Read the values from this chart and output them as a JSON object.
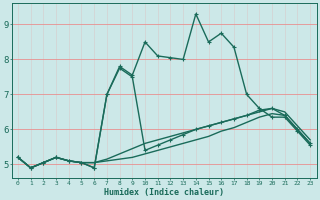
{
  "title": "",
  "xlabel": "Humidex (Indice chaleur)",
  "ylabel": "",
  "background_color": "#cce8e8",
  "grid_color": "#e8a0a0",
  "line_color": "#1a6b5a",
  "xlim": [
    -0.5,
    23.5
  ],
  "ylim": [
    4.6,
    9.6
  ],
  "xticks": [
    0,
    1,
    2,
    3,
    4,
    5,
    6,
    7,
    8,
    9,
    10,
    11,
    12,
    13,
    14,
    15,
    16,
    17,
    18,
    19,
    20,
    21,
    22,
    23
  ],
  "yticks": [
    5,
    6,
    7,
    8,
    9
  ],
  "series": [
    {
      "x": [
        0,
        1,
        2,
        3,
        4,
        5,
        6,
        7,
        8,
        9,
        10,
        11,
        12,
        13,
        14,
        15,
        16,
        17,
        18,
        19,
        20,
        21,
        22,
        23
      ],
      "y": [
        5.2,
        4.9,
        5.05,
        5.2,
        5.1,
        5.05,
        5.05,
        5.1,
        5.15,
        5.2,
        5.3,
        5.4,
        5.5,
        5.6,
        5.7,
        5.8,
        5.95,
        6.05,
        6.2,
        6.35,
        6.45,
        6.4,
        6.0,
        5.6
      ],
      "marker": null,
      "lw": 1.0
    },
    {
      "x": [
        0,
        1,
        2,
        3,
        4,
        5,
        6,
        7,
        8,
        9,
        10,
        11,
        12,
        13,
        14,
        15,
        16,
        17,
        18,
        19,
        20,
        21,
        22,
        23
      ],
      "y": [
        5.2,
        4.9,
        5.05,
        5.2,
        5.1,
        5.05,
        5.05,
        5.15,
        5.3,
        5.45,
        5.6,
        5.7,
        5.8,
        5.9,
        6.0,
        6.1,
        6.2,
        6.3,
        6.4,
        6.5,
        6.6,
        6.5,
        6.1,
        5.7
      ],
      "marker": null,
      "lw": 1.0
    },
    {
      "x": [
        0,
        1,
        2,
        3,
        4,
        5,
        6,
        7,
        8,
        9,
        10,
        11,
        12,
        13,
        14,
        15,
        16,
        17,
        18,
        19,
        20,
        21,
        22,
        23
      ],
      "y": [
        5.2,
        4.9,
        5.05,
        5.2,
        5.1,
        5.05,
        4.9,
        7.0,
        7.75,
        7.5,
        5.4,
        5.55,
        5.7,
        5.85,
        6.0,
        6.1,
        6.2,
        6.3,
        6.4,
        6.55,
        6.6,
        6.4,
        6.0,
        5.6
      ],
      "marker": "+",
      "lw": 1.0
    },
    {
      "x": [
        0,
        1,
        2,
        3,
        4,
        5,
        6,
        7,
        8,
        9,
        10,
        11,
        12,
        13,
        14,
        15,
        16,
        17,
        18,
        19,
        20,
        21,
        22,
        23
      ],
      "y": [
        5.2,
        4.9,
        5.05,
        5.2,
        5.1,
        5.05,
        4.9,
        7.0,
        7.8,
        7.55,
        8.5,
        8.1,
        8.05,
        8.0,
        9.3,
        8.5,
        8.75,
        8.35,
        7.0,
        6.6,
        6.35,
        6.35,
        5.95,
        5.55
      ],
      "marker": "+",
      "lw": 1.0
    }
  ]
}
